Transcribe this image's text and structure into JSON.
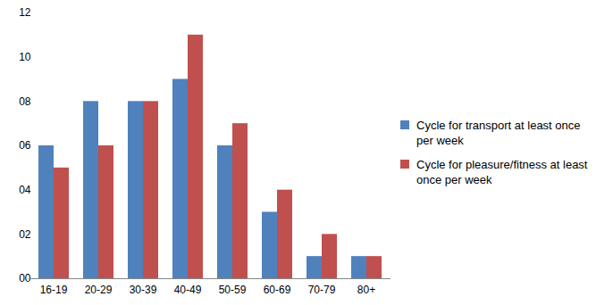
{
  "chart_data": {
    "type": "bar",
    "categories": [
      "16-19",
      "20-29",
      "30-39",
      "40-49",
      "50-59",
      "60-69",
      "70-79",
      "80+"
    ],
    "series": [
      {
        "name": "Cycle for transport at least once per week",
        "color": "#4f81bd",
        "values": [
          6,
          8,
          8,
          9,
          6,
          3,
          1,
          1
        ]
      },
      {
        "name": "Cycle for pleasure/fitness at least once per week",
        "color": "#c0504d",
        "values": [
          5,
          6,
          8,
          11,
          7,
          4,
          2,
          1
        ]
      }
    ],
    "ylim": [
      0,
      12
    ],
    "yticks": [
      {
        "value": 0,
        "label": "00"
      },
      {
        "value": 2,
        "label": "02"
      },
      {
        "value": 4,
        "label": "04"
      },
      {
        "value": 6,
        "label": "06"
      },
      {
        "value": 8,
        "label": "08"
      },
      10,
      12
    ],
    "grid": false,
    "legend": "right"
  }
}
